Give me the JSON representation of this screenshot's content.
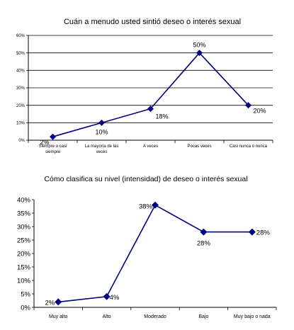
{
  "chart_data": [
    {
      "type": "line",
      "title": "Cuán a menudo usted sintió deseo o interés sexual",
      "categories": [
        "Siempre o casi siempre",
        "La mayoría de las veces",
        "A veces",
        "Pocas veces",
        "Casi nunca o nunca"
      ],
      "series": [
        {
          "values": [
            2,
            10,
            18,
            50,
            20
          ]
        }
      ],
      "data_labels": [
        "2%",
        "10%",
        "18%",
        "50%",
        "20%"
      ],
      "y_ticks": [
        "0%",
        "10%",
        "20%",
        "30%",
        "40%",
        "50%",
        "60%"
      ],
      "ylim": [
        0,
        60
      ],
      "grid": true,
      "color": "#000080"
    },
    {
      "type": "line",
      "title": "Cómo clasifica su nivel (intensidad) de deseo o interés sexual",
      "categories": [
        "Muy alto",
        "Alto",
        "Moderado",
        "Bajo",
        "Muy bajo o nada"
      ],
      "series": [
        {
          "values": [
            2,
            4,
            38,
            28,
            28
          ]
        }
      ],
      "data_labels": [
        "2%",
        "4%",
        "38%",
        "28%",
        "28%"
      ],
      "y_ticks": [
        "0%",
        "5%",
        "10%",
        "15%",
        "20%",
        "25%",
        "30%",
        "35%",
        "40%"
      ],
      "ylim": [
        0,
        40
      ],
      "grid": false,
      "color": "#000080"
    }
  ]
}
